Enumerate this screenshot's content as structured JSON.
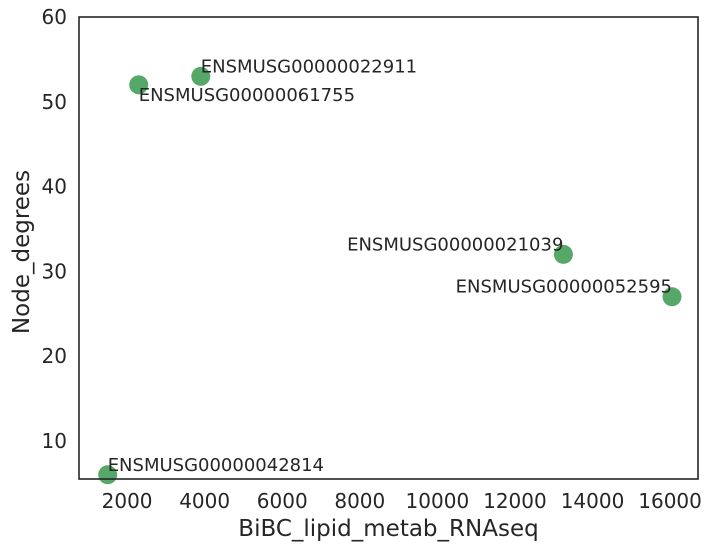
{
  "chart_data": {
    "type": "scatter",
    "xlabel": "BiBC_lipid_metab_RNAseq",
    "ylabel": "Node_degrees",
    "xlim": [
      760,
      16720
    ],
    "ylim": [
      5.5,
      60
    ],
    "xticks": [
      2000,
      4000,
      6000,
      8000,
      10000,
      12000,
      14000,
      16000
    ],
    "yticks": [
      10,
      20,
      30,
      40,
      50,
      60
    ],
    "grid": false,
    "point_color": "#55a868",
    "points": [
      {
        "label": "ENSMUSG00000022911",
        "x": 3900,
        "y": 53
      },
      {
        "label": "ENSMUSG00000061755",
        "x": 2300,
        "y": 52
      },
      {
        "label": "ENSMUSG00000021039",
        "x": 13250,
        "y": 32
      },
      {
        "label": "ENSMUSG00000052595",
        "x": 16050,
        "y": 27
      },
      {
        "label": "ENSMUSG00000042814",
        "x": 1500,
        "y": 6
      }
    ]
  }
}
